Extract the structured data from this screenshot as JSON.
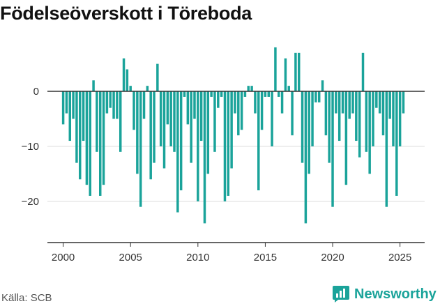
{
  "page": {
    "title": "Födelseöverskott i Töreboda",
    "source": "Källa: SCB",
    "brand": "Newsworthy"
  },
  "chart_data": {
    "type": "bar",
    "title": "Födelseöverskott i Töreboda",
    "xlabel": "",
    "ylabel": "",
    "ylim": [
      -27.5,
      8.5
    ],
    "xlim": [
      1998.83,
      2026.83
    ],
    "yticks": [
      0,
      -10,
      -20
    ],
    "yticklabels": [
      "0",
      "−10",
      "−20"
    ],
    "xticks": [
      2000,
      2005,
      2010,
      2015,
      2020,
      2025
    ],
    "grid": "horizontal",
    "color": "#1aa39a",
    "period": "quarterly",
    "start_year": 2000,
    "values": [
      -6,
      -4,
      -9,
      -5,
      -13,
      -16,
      -9,
      -17,
      -19,
      2,
      -11,
      -19,
      -17,
      -4,
      -3,
      -5,
      -5,
      -11,
      6,
      4,
      1,
      -7,
      -15,
      -21,
      -5,
      1,
      -16,
      -13,
      5,
      -10,
      -14,
      -6,
      -10,
      -11,
      -22,
      -18,
      -1,
      -6,
      -13,
      -5,
      -20,
      -9,
      -24,
      -15,
      -1,
      -11,
      -3,
      -1,
      -20,
      -19,
      -14,
      -4,
      -8,
      -7,
      -1,
      1,
      1,
      -4,
      -18,
      -7,
      -1,
      -1,
      -10,
      8,
      -1,
      -4,
      6,
      1,
      -8,
      7,
      7,
      -13,
      -24,
      -15,
      -10,
      -2,
      -2,
      2,
      -8,
      -13,
      -21,
      -4,
      -9,
      -4,
      -17,
      -5,
      -4,
      -9,
      -12,
      7,
      -11,
      -15,
      -10,
      -3,
      -4,
      -8,
      -21,
      -5,
      -10,
      -19,
      -10,
      -4
    ]
  }
}
